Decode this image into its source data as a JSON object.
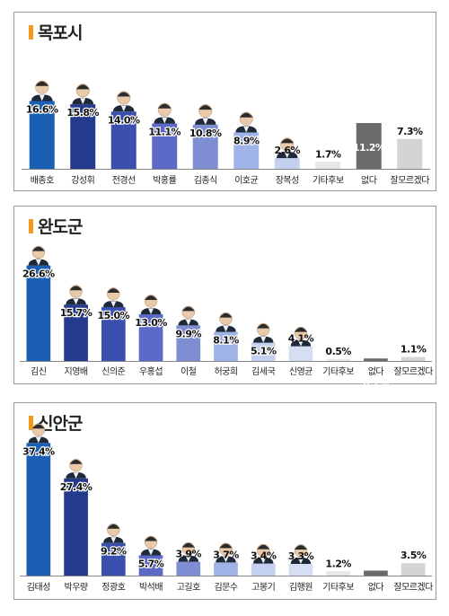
{
  "colors": {
    "candidate_palette": [
      "#1a5fb4",
      "#243a8c",
      "#3a4fae",
      "#5c69c6",
      "#7f8ed2",
      "#9fb3e6",
      "#c3d0ef",
      "#d6def4"
    ],
    "none": "#6b6b6b",
    "unsure": "#d4d4d4",
    "other": "#e6e6e6",
    "title_mark": "#f39a1e"
  },
  "chart_data": [
    {
      "type": "bar",
      "title": "목포시",
      "categories": [
        "배종호",
        "강성휘",
        "전경선",
        "박홍률",
        "김종식",
        "이호균",
        "장복성",
        "기타후보",
        "없다",
        "잘모르겠다"
      ],
      "values": [
        16.6,
        15.8,
        14.0,
        11.1,
        10.8,
        8.9,
        2.6,
        1.7,
        11.2,
        7.3
      ],
      "labels": [
        "16.6%",
        "15.8%",
        "14.0%",
        "11.1%",
        "10.8%",
        "8.9%",
        "2.6%",
        "1.7%",
        "11.2%",
        "7.3%"
      ],
      "kinds": [
        "c",
        "c",
        "c",
        "c",
        "c",
        "c",
        "c",
        "o",
        "n",
        "u"
      ]
    },
    {
      "type": "bar",
      "title": "완도군",
      "categories": [
        "김신",
        "지영배",
        "신의준",
        "우홍섭",
        "이철",
        "허궁희",
        "김세국",
        "신영균",
        "기타후보",
        "없다",
        "잘모르겠다"
      ],
      "values": [
        26.6,
        15.7,
        15.0,
        13.0,
        9.9,
        8.1,
        5.1,
        4.1,
        0.5,
        0.7,
        1.1
      ],
      "labels": [
        "26.6%",
        "15.7%",
        "15.0%",
        "13.0%",
        "9.9%",
        "8.1%",
        "5.1%",
        "4.1%",
        "0.5%",
        "0.7%",
        "1.1%"
      ],
      "kinds": [
        "c",
        "c",
        "c",
        "c",
        "c",
        "c",
        "c",
        "c",
        "o",
        "n",
        "u"
      ]
    },
    {
      "type": "bar",
      "title": "신안군",
      "categories": [
        "김태성",
        "박우량",
        "정광호",
        "박석배",
        "고길호",
        "김문수",
        "고봉기",
        "김행원",
        "기타후보",
        "없다",
        "잘모르겠다"
      ],
      "values": [
        37.4,
        27.4,
        9.2,
        5.7,
        3.9,
        3.7,
        3.4,
        3.3,
        1.2,
        1.4,
        3.5
      ],
      "labels": [
        "37.4%",
        "27.4%",
        "9.2%",
        "5.7%",
        "3.9%",
        "3.7%",
        "3.4%",
        "3.3%",
        "1.2%",
        "1.4%",
        "3.5%"
      ],
      "kinds": [
        "c",
        "c",
        "c",
        "c",
        "c",
        "c",
        "c",
        "c",
        "o",
        "n",
        "u"
      ]
    }
  ]
}
